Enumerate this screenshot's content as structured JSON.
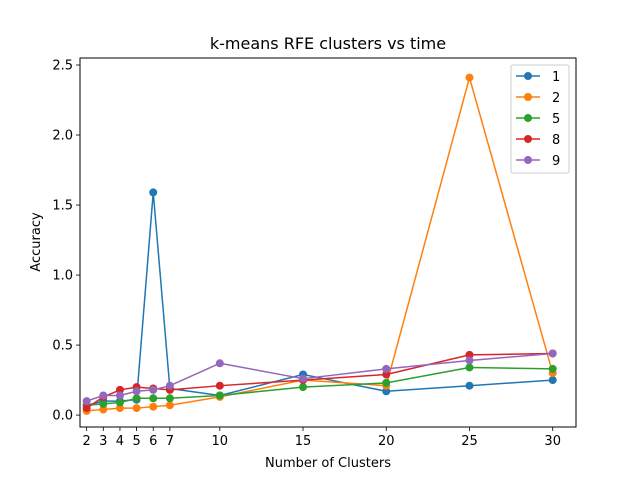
{
  "chart_data": {
    "type": "line",
    "title": "k-means RFE clusters vs time",
    "xlabel": "Number of Clusters",
    "ylabel": "Accuracy",
    "x": [
      2,
      3,
      4,
      5,
      6,
      7,
      10,
      15,
      20,
      25,
      30
    ],
    "x_ticks": [
      2,
      3,
      4,
      5,
      6,
      7,
      10,
      15,
      20,
      25,
      30
    ],
    "x_tick_labels": [
      "2",
      "3",
      "4",
      "5",
      "6",
      "7",
      "10",
      "15",
      "20",
      "25",
      "30"
    ],
    "y_ticks": [
      0.0,
      0.5,
      1.0,
      1.5,
      2.0,
      2.5
    ],
    "y_tick_labels": [
      "0.0",
      "0.5",
      "1.0",
      "1.5",
      "2.0",
      "2.5"
    ],
    "xlim": [
      1.6,
      31.4
    ],
    "ylim": [
      -0.085,
      2.55
    ],
    "grid": false,
    "legend_position": "top-right",
    "series": [
      {
        "name": "1",
        "color": "#1f77b4",
        "values": [
          0.07,
          0.1,
          0.1,
          0.11,
          1.59,
          0.19,
          0.14,
          0.29,
          0.17,
          0.21,
          0.25
        ]
      },
      {
        "name": "2",
        "color": "#ff7f0e",
        "values": [
          0.03,
          0.04,
          0.05,
          0.05,
          0.06,
          0.07,
          0.13,
          0.25,
          0.21,
          2.41,
          0.3
        ]
      },
      {
        "name": "5",
        "color": "#2ca02c",
        "values": [
          0.07,
          0.08,
          0.09,
          0.12,
          0.12,
          0.12,
          0.14,
          0.2,
          0.23,
          0.34,
          0.33
        ]
      },
      {
        "name": "8",
        "color": "#d62728",
        "values": [
          0.05,
          0.13,
          0.18,
          0.2,
          0.19,
          0.18,
          0.21,
          0.25,
          0.29,
          0.43,
          0.44
        ]
      },
      {
        "name": "9",
        "color": "#9467bd",
        "values": [
          0.1,
          0.14,
          0.14,
          0.17,
          0.18,
          0.21,
          0.37,
          0.26,
          0.33,
          0.39,
          0.44
        ]
      }
    ]
  }
}
